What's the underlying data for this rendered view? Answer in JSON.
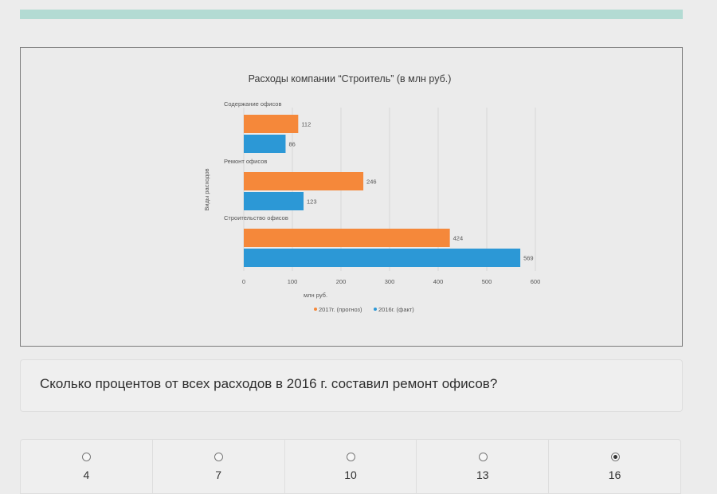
{
  "progress": {
    "fraction": 1.0
  },
  "colors": {
    "forecast": "#f5883a",
    "actual": "#2c98d6"
  },
  "chart_data": {
    "type": "bar",
    "orientation": "horizontal",
    "title": "Расходы компании “Строитель” (в млн руб.)",
    "categories": [
      "Содержание офисов",
      "Ремонт офисов",
      "Строительство офисов"
    ],
    "series": [
      {
        "name": "2017г. (прогноз)",
        "values": [
          112,
          246,
          424
        ],
        "color": "#f5883a"
      },
      {
        "name": "2016г. (факт)",
        "values": [
          86,
          123,
          569
        ],
        "color": "#2c98d6"
      }
    ],
    "xlabel": "млн руб.",
    "ylabel": "Виды расходов",
    "xlim": [
      0,
      600
    ],
    "xticks": [
      0,
      100,
      200,
      300,
      400,
      500,
      600
    ],
    "grid": true,
    "legend_position": "bottom"
  },
  "question": {
    "text": "Сколько процентов от всех расходов в 2016 г. составил ремонт офисов?"
  },
  "options": [
    {
      "label": "4",
      "selected": false
    },
    {
      "label": "7",
      "selected": false
    },
    {
      "label": "10",
      "selected": false
    },
    {
      "label": "13",
      "selected": false
    },
    {
      "label": "16",
      "selected": true
    }
  ]
}
